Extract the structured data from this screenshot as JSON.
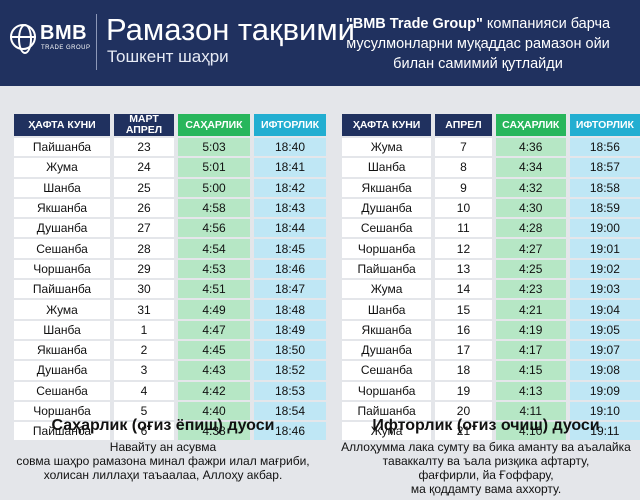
{
  "header": {
    "logo_text": "BMB",
    "logo_sub": "TRADE GROUP",
    "title": "Рамазон тақвими",
    "subtitle": "Тошкент шаҳри",
    "tagline_brand": "\"BMB Trade Group\"",
    "tagline_rest": " компанияси барча мусулмонларни муқаддас рамазон ойи билан самимий қутлайди"
  },
  "left_table": {
    "headers": {
      "day": "ҲАФТА КУНИ",
      "num": "МАРТ АПРЕЛ",
      "sah": "САҲАРЛИК",
      "ift": "ИФТОРЛИК"
    },
    "rows": [
      {
        "day": "Пайшанба",
        "num": "23",
        "sah": "5:03",
        "ift": "18:40"
      },
      {
        "day": "Жума",
        "num": "24",
        "sah": "5:01",
        "ift": "18:41"
      },
      {
        "day": "Шанба",
        "num": "25",
        "sah": "5:00",
        "ift": "18:42"
      },
      {
        "day": "Якшанба",
        "num": "26",
        "sah": "4:58",
        "ift": "18:43"
      },
      {
        "day": "Душанба",
        "num": "27",
        "sah": "4:56",
        "ift": "18:44"
      },
      {
        "day": "Сешанба",
        "num": "28",
        "sah": "4:54",
        "ift": "18:45"
      },
      {
        "day": "Чоршанба",
        "num": "29",
        "sah": "4:53",
        "ift": "18:46"
      },
      {
        "day": "Пайшанба",
        "num": "30",
        "sah": "4:51",
        "ift": "18:47"
      },
      {
        "day": "Жума",
        "num": "31",
        "sah": "4:49",
        "ift": "18:48"
      },
      {
        "day": "Шанба",
        "num": "1",
        "sah": "4:47",
        "ift": "18:49"
      },
      {
        "day": "Якшанба",
        "num": "2",
        "sah": "4:45",
        "ift": "18:50"
      },
      {
        "day": "Душанба",
        "num": "3",
        "sah": "4:43",
        "ift": "18:52"
      },
      {
        "day": "Сешанба",
        "num": "4",
        "sah": "4:42",
        "ift": "18:53"
      },
      {
        "day": "Чоршанба",
        "num": "5",
        "sah": "4:40",
        "ift": "18:54"
      },
      {
        "day": "Пайшанба",
        "num": "6",
        "sah": "4:38",
        "ift": "18:46"
      }
    ]
  },
  "right_table": {
    "headers": {
      "day": "ҲАФТА КУНИ",
      "num": "АПРЕЛ",
      "sah": "САҲАРЛИК",
      "ift": "ИФТОРЛИК"
    },
    "rows": [
      {
        "day": "Жума",
        "num": "7",
        "sah": "4:36",
        "ift": "18:56"
      },
      {
        "day": "Шанба",
        "num": "8",
        "sah": "4:34",
        "ift": "18:57"
      },
      {
        "day": "Якшанба",
        "num": "9",
        "sah": "4:32",
        "ift": "18:58"
      },
      {
        "day": "Душанба",
        "num": "10",
        "sah": "4:30",
        "ift": "18:59"
      },
      {
        "day": "Сешанба",
        "num": "11",
        "sah": "4:28",
        "ift": "19:00"
      },
      {
        "day": "Чоршанба",
        "num": "12",
        "sah": "4:27",
        "ift": "19:01"
      },
      {
        "day": "Пайшанба",
        "num": "13",
        "sah": "4:25",
        "ift": "19:02"
      },
      {
        "day": "Жума",
        "num": "14",
        "sah": "4:23",
        "ift": "19:03"
      },
      {
        "day": "Шанба",
        "num": "15",
        "sah": "4:21",
        "ift": "19:04"
      },
      {
        "day": "Якшанба",
        "num": "16",
        "sah": "4:19",
        "ift": "19:05"
      },
      {
        "day": "Душанба",
        "num": "17",
        "sah": "4:17",
        "ift": "19:07"
      },
      {
        "day": "Сешанба",
        "num": "18",
        "sah": "4:15",
        "ift": "19:08"
      },
      {
        "day": "Чоршанба",
        "num": "19",
        "sah": "4:13",
        "ift": "19:09"
      },
      {
        "day": "Пайшанба",
        "num": "20",
        "sah": "4:11",
        "ift": "19:10"
      },
      {
        "day": "Жума",
        "num": "21",
        "sah": "4:10",
        "ift": "19:11"
      }
    ]
  },
  "duas": {
    "suhur_title": "Саҳарлик (оғиз ёпиш) дуоси",
    "suhur_text": "Навайту ан асувма\nсовма шаҳро рамазона минал фажри илал мағриби,\nхолисан лиллаҳи таъаалаа, Аллоҳу акбар.",
    "iftar_title": "Ифторлик (оғиз очиш) дуоси",
    "iftar_text": "Аллоҳумма лака сумту ва бика аманту ва аъалайка\nтаваккалту ва ъала ризқика афтарту,\nфағфирли, йа Ғоффару,\nма қоддамту вама аххорту."
  },
  "colors": {
    "header_bg": "#20315f",
    "suhur_header": "#28b65c",
    "iftar_header": "#22aed1",
    "suhur_cell": "#b6e7c5",
    "iftar_cell": "#bfe7f5"
  }
}
